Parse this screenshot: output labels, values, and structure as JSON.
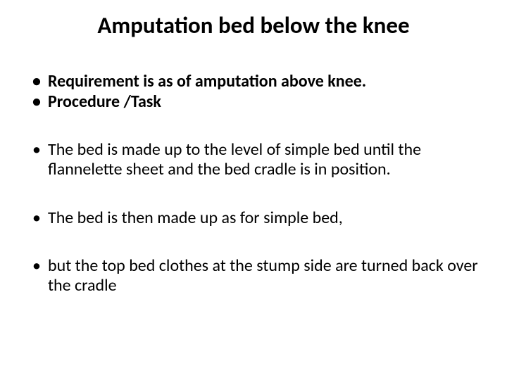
{
  "slide": {
    "background_color": "#ffffff",
    "text_color": "#000000",
    "title": {
      "text": "Amputation bed below the knee",
      "fontsize": 33,
      "weight": 700
    },
    "bullets": [
      {
        "text": "Requirement is as of amputation above knee.",
        "bold": true,
        "fontsize": 24,
        "gap_after": 0
      },
      {
        "text": "Procedure /Task",
        "bold": true,
        "fontsize": 24,
        "gap_after": 40
      },
      {
        "text": "The bed is made up to the level of simple bed until the flannelette sheet and the bed cradle is in position.",
        "bold": false,
        "fontsize": 24,
        "gap_after": 40
      },
      {
        "text": "The bed is then made up as for simple bed,",
        "bold": false,
        "fontsize": 24,
        "gap_after": 40
      },
      {
        "text": "but the top bed clothes at the stump side are turned back over the cradle",
        "bold": false,
        "fontsize": 24,
        "gap_after": 0
      }
    ]
  }
}
